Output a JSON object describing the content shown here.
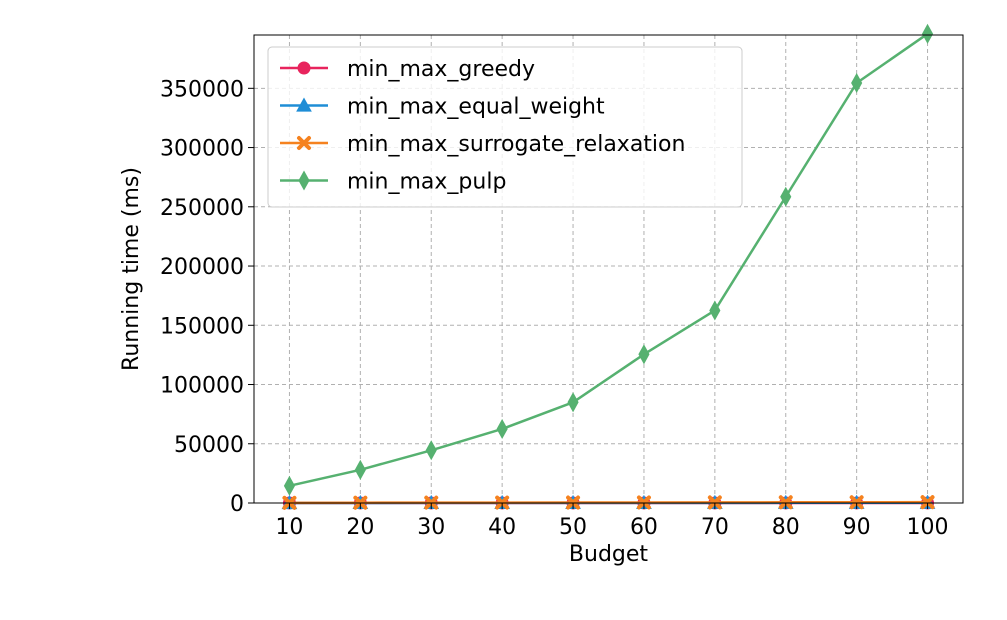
{
  "chart_data": {
    "type": "line",
    "title": "",
    "xlabel": "Budget",
    "ylabel": "Running time (ms)",
    "x": [
      10,
      20,
      30,
      40,
      50,
      60,
      70,
      80,
      90,
      100
    ],
    "xlim": [
      5,
      105
    ],
    "ylim": [
      0,
      395000
    ],
    "xticks": [
      "10",
      "20",
      "30",
      "40",
      "50",
      "60",
      "70",
      "80",
      "90",
      "100"
    ],
    "yticks": [
      "0",
      "50000",
      "100000",
      "150000",
      "200000",
      "250000",
      "300000",
      "350000"
    ],
    "grid": true,
    "legend_position": "top-left",
    "series": [
      {
        "name": "min_max_greedy",
        "color": "#e8245d",
        "marker": "circle",
        "values": [
          5,
          10,
          15,
          20,
          25,
          30,
          35,
          40,
          45,
          50
        ]
      },
      {
        "name": "min_max_equal_weight",
        "color": "#1f8dd6",
        "marker": "triangle",
        "values": [
          20,
          40,
          60,
          80,
          100,
          120,
          140,
          160,
          180,
          200
        ]
      },
      {
        "name": "min_max_surrogate_relaxation",
        "color": "#f5821f",
        "marker": "x",
        "values": [
          150,
          250,
          300,
          350,
          400,
          450,
          500,
          600,
          650,
          700
        ]
      },
      {
        "name": "min_max_pulp",
        "color": "#56b170",
        "marker": "thin-diamond",
        "values": [
          14500,
          28000,
          44500,
          62500,
          85000,
          125500,
          162500,
          258500,
          354500,
          396000
        ]
      }
    ]
  }
}
